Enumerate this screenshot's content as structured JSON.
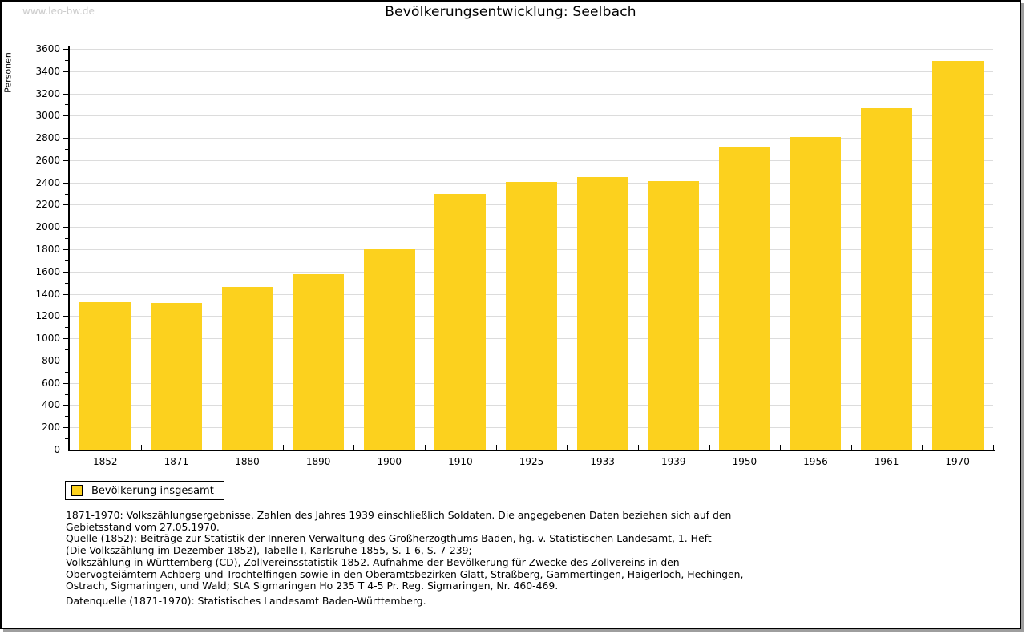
{
  "watermark": "www.leo-bw.de",
  "header": {
    "title": "Bevölkerungsentwicklung: Seelbach"
  },
  "legend": {
    "label": "Bevölkerung insgesamt",
    "swatch_color": "#fcd11e"
  },
  "chart_data": {
    "type": "bar",
    "title": "Bevölkerungsentwicklung: Seelbach",
    "categories": [
      "1852",
      "1871",
      "1880",
      "1890",
      "1900",
      "1910",
      "1925",
      "1933",
      "1939",
      "1950",
      "1956",
      "1961",
      "1970"
    ],
    "series": [
      {
        "name": "Bevölkerung insgesamt",
        "values": [
          1325,
          1315,
          1460,
          1575,
          1800,
          2295,
          2405,
          2445,
          2410,
          2720,
          2805,
          3070,
          3495
        ]
      }
    ],
    "xlabel": "",
    "ylabel": "Personen",
    "ylim": [
      0,
      3600
    ],
    "ytick_step": 200,
    "yminor_step": 100,
    "grid": true,
    "legend_position": "below-left",
    "bar_color": "#fcd11e"
  },
  "footnotes": {
    "lines": [
      "1871-1970: Volkszählungsergebnisse. Zahlen des Jahres 1939 einschließlich Soldaten. Die angegebenen Daten beziehen sich auf den",
      "Gebietsstand vom 27.05.1970.",
      "Quelle (1852): Beiträge zur Statistik der Inneren Verwaltung des Großherzogthums Baden, hg. v. Statistischen Landesamt, 1. Heft",
      "(Die Volkszählung im Dezember 1852), Tabelle I, Karlsruhe 1855, S. 1-6, S. 7-239;",
      "Volkszählung in Württemberg (CD), Zollvereinsstatistik 1852. Aufnahme der Bevölkerung für Zwecke des Zollvereins in den",
      "Obervogteiämtern Achberg und Trochtelfingen sowie in den Oberamtsbezirken Glatt, Straßberg, Gammertingen, Haigerloch, Hechingen,",
      "Ostrach, Sigmaringen, und Wald; StA Sigmaringen Ho 235 T 4-5 Pr. Reg. Sigmaringen, Nr. 460-469."
    ],
    "datasource": "Datenquelle (1871-1970): Statistisches Landesamt Baden-Württemberg."
  },
  "colors": {
    "bar": "#fcd11e",
    "grid": "#dcdcdc",
    "axis": "#000000",
    "watermark": "#cccccc",
    "frame_border": "#000000",
    "frame_shadow": "#9e9e9e",
    "background": "#ffffff"
  }
}
